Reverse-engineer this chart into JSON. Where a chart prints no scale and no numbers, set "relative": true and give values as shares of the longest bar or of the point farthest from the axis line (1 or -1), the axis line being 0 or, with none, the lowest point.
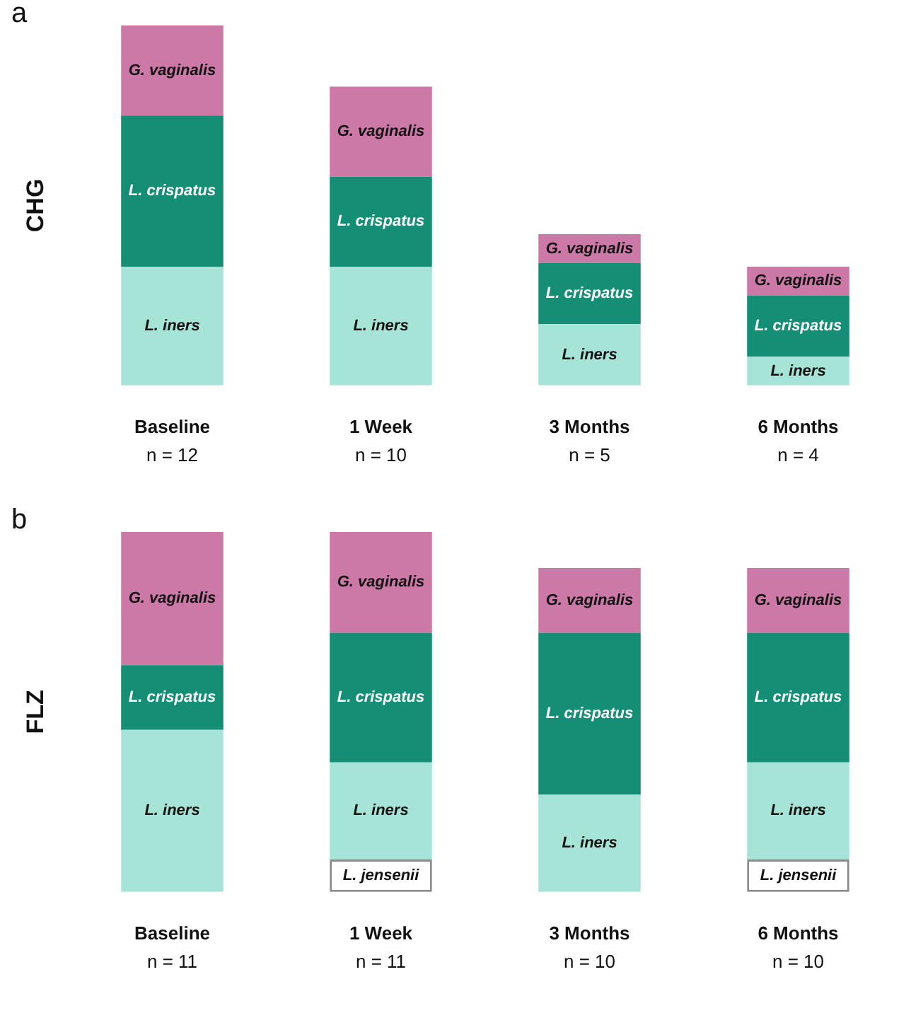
{
  "chart_data": [
    {
      "type": "bar",
      "stacked": true,
      "relative": true,
      "title": "a",
      "ylabel": "CHG",
      "categories": [
        "Baseline",
        "1 Week",
        "3 Months",
        "6 Months"
      ],
      "annotations": [
        "n = 12",
        "n = 10",
        "n = 5",
        "n = 4"
      ],
      "series": [
        {
          "name": "L. iners",
          "color": "#a6e4d8",
          "values": [
            0.33,
            0.33,
            0.17,
            0.08
          ]
        },
        {
          "name": "L. crispatus",
          "color": "#148f76",
          "values": [
            0.42,
            0.25,
            0.17,
            0.17
          ]
        },
        {
          "name": "G. vaginalis",
          "color": "#cc79a7",
          "values": [
            0.25,
            0.25,
            0.08,
            0.08
          ]
        }
      ]
    },
    {
      "type": "bar",
      "stacked": true,
      "relative": true,
      "title": "b",
      "ylabel": "FLZ",
      "categories": [
        "Baseline",
        "1 Week",
        "3 Months",
        "6 Months"
      ],
      "annotations": [
        "n = 11",
        "n = 11",
        "n = 10",
        "n = 10"
      ],
      "series": [
        {
          "name": "L. jensenii",
          "color": "#ffffff",
          "values": [
            null,
            0.09,
            null,
            0.09
          ]
        },
        {
          "name": "L. iners",
          "color": "#a6e4d8",
          "values": [
            0.45,
            0.27,
            0.27,
            0.27
          ]
        },
        {
          "name": "L. crispatus",
          "color": "#148f76",
          "values": [
            0.18,
            0.36,
            0.45,
            0.36
          ]
        },
        {
          "name": "G. vaginalis",
          "color": "#cc79a7",
          "values": [
            0.37,
            0.28,
            0.18,
            0.18
          ]
        }
      ]
    }
  ]
}
